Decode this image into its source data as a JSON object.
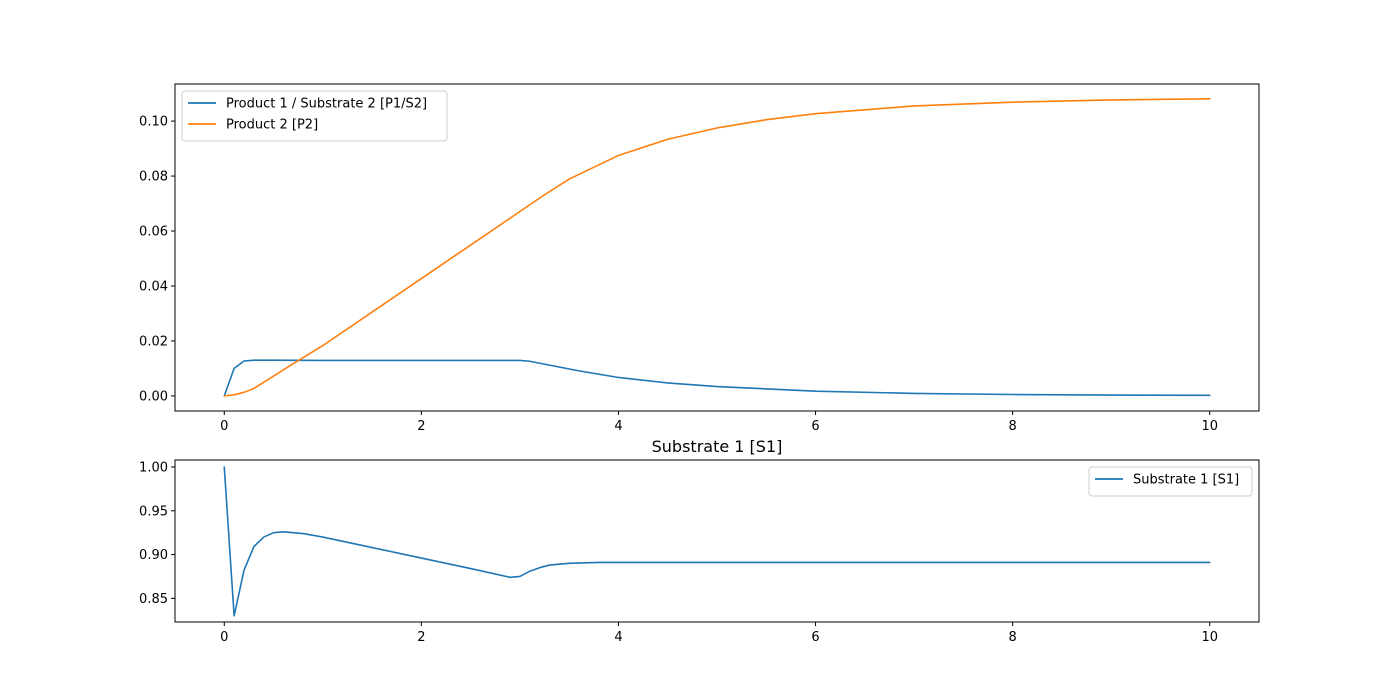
{
  "chart_data": [
    {
      "type": "line",
      "title": "",
      "xlabel": "",
      "ylabel": "",
      "xlim": [
        -0.5,
        10.5
      ],
      "ylim": [
        -0.0055,
        0.1135
      ],
      "xticks": [
        0,
        2,
        4,
        6,
        8,
        10
      ],
      "yticks": [
        0.0,
        0.02,
        0.04,
        0.06,
        0.08,
        0.1
      ],
      "ytick_labels": [
        "0.00",
        "0.02",
        "0.04",
        "0.06",
        "0.08",
        "0.10"
      ],
      "grid": false,
      "legend_position": "upper-left",
      "series": [
        {
          "name": "Product 1 / Substrate 2 [P1/S2]",
          "color": "#1f77b4",
          "x": [
            0,
            0.1,
            0.2,
            0.3,
            0.5,
            1.0,
            2.0,
            3.0,
            3.1,
            3.3,
            3.6,
            4.0,
            4.5,
            5.0,
            6.0,
            7.0,
            8.0,
            9.0,
            10.0
          ],
          "y": [
            0.0,
            0.01,
            0.0127,
            0.013,
            0.013,
            0.0129,
            0.0129,
            0.0129,
            0.0126,
            0.0112,
            0.0091,
            0.0067,
            0.0047,
            0.0034,
            0.0017,
            0.0009,
            0.0005,
            0.0003,
            0.0002
          ]
        },
        {
          "name": "Product 2 [P2]",
          "color": "#ff7f0e",
          "x": [
            0,
            0.1,
            0.2,
            0.3,
            0.5,
            0.7,
            1.0,
            1.5,
            2.0,
            2.5,
            3.0,
            3.25,
            3.5,
            4.0,
            4.5,
            5.0,
            5.5,
            6.0,
            7.0,
            8.0,
            9.0,
            10.0
          ],
          "y": [
            0.0,
            0.0004,
            0.0013,
            0.0027,
            0.0072,
            0.0117,
            0.0183,
            0.0305,
            0.0427,
            0.0549,
            0.0671,
            0.0732,
            0.0789,
            0.0875,
            0.0934,
            0.0975,
            0.1005,
            0.1027,
            0.1055,
            0.1069,
            0.1077,
            0.1081
          ]
        }
      ]
    },
    {
      "type": "line",
      "title": "Substrate 1 [S1]",
      "xlabel": "",
      "ylabel": "",
      "xlim": [
        -0.5,
        10.5
      ],
      "ylim": [
        0.823,
        1.008
      ],
      "xticks": [
        0,
        2,
        4,
        6,
        8,
        10
      ],
      "yticks": [
        0.85,
        0.9,
        0.95,
        1.0
      ],
      "ytick_labels": [
        "0.85",
        "0.90",
        "0.95",
        "1.00"
      ],
      "grid": false,
      "legend_position": "upper-right",
      "series": [
        {
          "name": "Substrate 1 [S1]",
          "color": "#1f77b4",
          "x": [
            0,
            0.1,
            0.2,
            0.3,
            0.4,
            0.5,
            0.6,
            0.7,
            0.8,
            1.0,
            1.5,
            2.0,
            2.5,
            2.9,
            3.0,
            3.1,
            3.2,
            3.3,
            3.5,
            3.8,
            4.0,
            5.0,
            6.0,
            7.0,
            8.0,
            9.0,
            10.0
          ],
          "y": [
            1.0,
            0.83,
            0.882,
            0.909,
            0.92,
            0.925,
            0.926,
            0.925,
            0.924,
            0.92,
            0.908,
            0.896,
            0.884,
            0.874,
            0.875,
            0.881,
            0.885,
            0.888,
            0.89,
            0.891,
            0.891,
            0.891,
            0.891,
            0.891,
            0.891,
            0.891,
            0.891
          ]
        }
      ]
    }
  ]
}
